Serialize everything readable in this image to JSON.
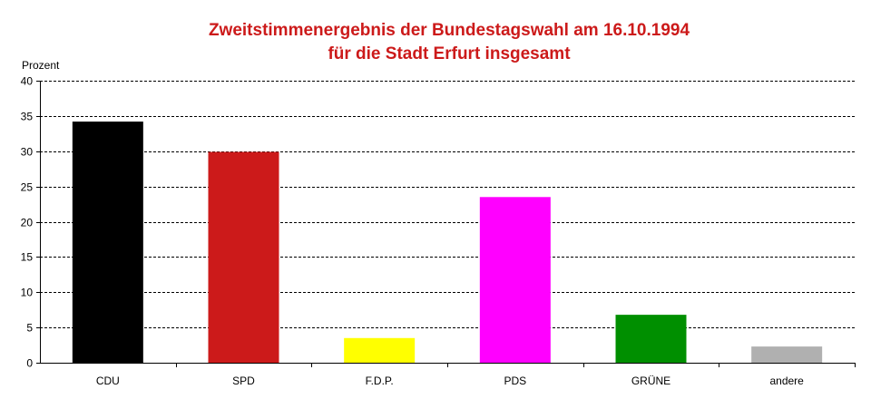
{
  "chart_data": {
    "type": "bar",
    "title": "Zweitstimmenergebnis der Bundestagswahl am 16.10.1994",
    "subtitle": "für die Stadt Erfurt insgesamt",
    "ylabel": "Prozent",
    "xlabel": "",
    "categories": [
      "CDU",
      "SPD",
      "F.D.P.",
      "PDS",
      "GRÜNE",
      "andere"
    ],
    "values": [
      34.2,
      29.9,
      3.5,
      23.5,
      6.8,
      2.3
    ],
    "colors": [
      "#000000",
      "#cc1a1a",
      "#ffff00",
      "#ff00ff",
      "#008f00",
      "#b0b0b0"
    ],
    "ylim": [
      0,
      40
    ],
    "yticks": [
      0,
      5,
      10,
      15,
      20,
      25,
      30,
      35,
      40
    ],
    "grid": true,
    "title_color": "#cc1a1a"
  }
}
